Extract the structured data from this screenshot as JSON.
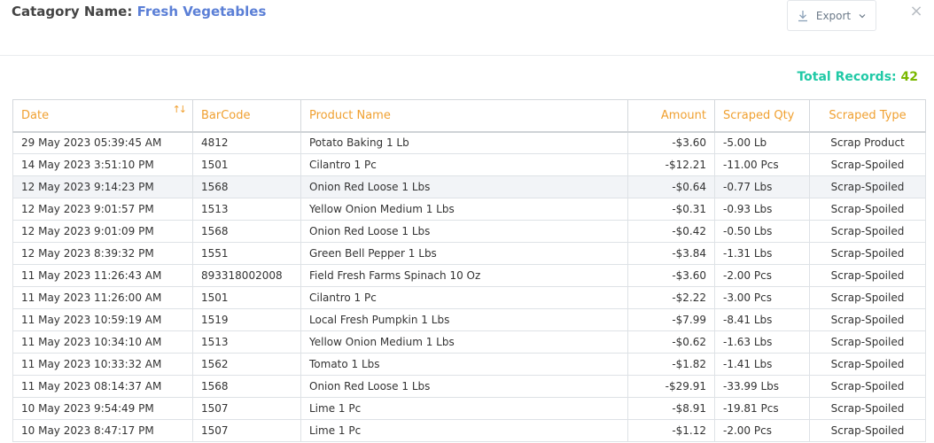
{
  "header": {
    "category_label": "Catagory Name:",
    "category_value": "Fresh Vegetables",
    "export_label": "Export",
    "close_glyph": "×",
    "total_label": "Total Records:",
    "total_count": "42"
  },
  "table": {
    "columns": [
      "Date",
      "BarCode",
      "Product Name",
      "Amount",
      "Scraped Qty",
      "Scraped Type"
    ],
    "rows": [
      [
        "29 May 2023 05:39:45 AM",
        "4812",
        "Potato Baking 1 Lb",
        "-$3.60",
        "-5.00 Lb",
        "Scrap Product"
      ],
      [
        "14 May 2023 3:51:10 PM",
        "1501",
        "Cilantro 1 Pc",
        "-$12.21",
        "-11.00 Pcs",
        "Scrap-Spoiled"
      ],
      [
        "12 May 2023 9:14:23 PM",
        "1568",
        "Onion Red Loose 1 Lbs",
        "-$0.64",
        "-0.77 Lbs",
        "Scrap-Spoiled"
      ],
      [
        "12 May 2023 9:01:57 PM",
        "1513",
        "Yellow Onion Medium 1 Lbs",
        "-$0.31",
        "-0.93 Lbs",
        "Scrap-Spoiled"
      ],
      [
        "12 May 2023 9:01:09 PM",
        "1568",
        "Onion Red Loose 1 Lbs",
        "-$0.42",
        "-0.50 Lbs",
        "Scrap-Spoiled"
      ],
      [
        "12 May 2023 8:39:32 PM",
        "1551",
        "Green Bell Pepper 1 Lbs",
        "-$3.84",
        "-1.31 Lbs",
        "Scrap-Spoiled"
      ],
      [
        "11 May 2023 11:26:43 AM",
        "893318002008",
        "Field Fresh Farms Spinach 10 Oz",
        "-$3.60",
        "-2.00 Pcs",
        "Scrap-Spoiled"
      ],
      [
        "11 May 2023 11:26:00 AM",
        "1501",
        "Cilantro 1 Pc",
        "-$2.22",
        "-3.00 Pcs",
        "Scrap-Spoiled"
      ],
      [
        "11 May 2023 10:59:19 AM",
        "1519",
        "Local Fresh Pumpkin 1 Lbs",
        "-$7.99",
        "-8.41 Lbs",
        "Scrap-Spoiled"
      ],
      [
        "11 May 2023 10:34:10 AM",
        "1513",
        "Yellow Onion Medium 1 Lbs",
        "-$0.62",
        "-1.63 Lbs",
        "Scrap-Spoiled"
      ],
      [
        "11 May 2023 10:33:32 AM",
        "1562",
        "Tomato 1 Lbs",
        "-$1.82",
        "-1.41 Lbs",
        "Scrap-Spoiled"
      ],
      [
        "11 May 2023 08:14:37 AM",
        "1568",
        "Onion Red Loose 1 Lbs",
        "-$29.91",
        "-33.99 Lbs",
        "Scrap-Spoiled"
      ],
      [
        "10 May 2023 9:54:49 PM",
        "1507",
        "Lime 1 Pc",
        "-$8.91",
        "-19.81 Pcs",
        "Scrap-Spoiled"
      ],
      [
        "10 May 2023 8:47:17 PM",
        "1507",
        "Lime 1 Pc",
        "-$1.12",
        "-2.00 Pcs",
        "Scrap-Spoiled"
      ]
    ]
  },
  "icons": {
    "export": "download-icon",
    "dropdown": "chevron-down-icon",
    "close": "close-icon",
    "sort": "sort-icon"
  },
  "colors": {
    "accent_blue": "#5b7fd6",
    "header_orange": "#f0a030",
    "total_teal": "#20c9a6",
    "total_green": "#7ab800"
  }
}
